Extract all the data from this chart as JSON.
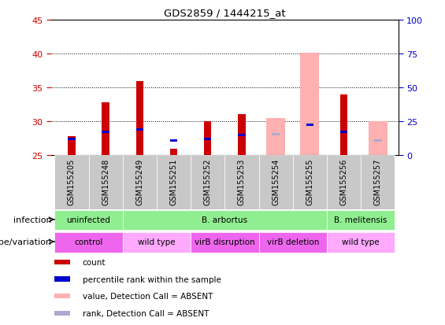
{
  "title": "GDS2859 / 1444215_at",
  "samples": [
    "GSM155205",
    "GSM155248",
    "GSM155249",
    "GSM155251",
    "GSM155252",
    "GSM155253",
    "GSM155254",
    "GSM155255",
    "GSM155256",
    "GSM155257"
  ],
  "baseline": 25,
  "ylim_left": [
    25,
    45
  ],
  "ylim_right": [
    0,
    100
  ],
  "yticks_left": [
    25,
    30,
    35,
    40,
    45
  ],
  "yticks_right": [
    0,
    25,
    50,
    75,
    100
  ],
  "red_bars": [
    27.8,
    32.8,
    36.0,
    26.0,
    30.0,
    31.1,
    null,
    null,
    34.0,
    null
  ],
  "pink_bars": [
    null,
    null,
    null,
    null,
    null,
    null,
    30.5,
    40.2,
    null,
    30.0
  ],
  "blue_squares": [
    27.2,
    28.3,
    28.7,
    27.0,
    27.2,
    27.8,
    null,
    29.3,
    28.3,
    null
  ],
  "light_blue_squares": [
    null,
    null,
    null,
    null,
    null,
    null,
    28.0,
    null,
    null,
    27.0
  ],
  "inf_groups": [
    {
      "label": "uninfected",
      "start": 0,
      "end": 2,
      "color": "#90EE90"
    },
    {
      "label": "B. arbortus",
      "start": 2,
      "end": 8,
      "color": "#90EE90"
    },
    {
      "label": "B. melitensis",
      "start": 8,
      "end": 10,
      "color": "#90EE90"
    }
  ],
  "gen_groups": [
    {
      "label": "control",
      "start": 0,
      "end": 2,
      "color": "#EE66EE"
    },
    {
      "label": "wild type",
      "start": 2,
      "end": 4,
      "color": "#FFAAFF"
    },
    {
      "label": "virB disruption",
      "start": 4,
      "end": 6,
      "color": "#EE66EE"
    },
    {
      "label": "virB deletion",
      "start": 6,
      "end": 8,
      "color": "#EE66EE"
    },
    {
      "label": "wild type",
      "start": 8,
      "end": 10,
      "color": "#FFAAFF"
    }
  ],
  "red_color": "#CC0000",
  "pink_color": "#FFB0B0",
  "blue_color": "#0000CC",
  "light_blue_color": "#AAAACC",
  "left_tick_color": "#CC0000",
  "right_tick_color": "#0000CC",
  "gray_bg": "#C8C8C8",
  "legend_items": [
    {
      "color": "#CC0000",
      "label": "count"
    },
    {
      "color": "#0000CC",
      "label": "percentile rank within the sample"
    },
    {
      "color": "#FFB0B0",
      "label": "value, Detection Call = ABSENT"
    },
    {
      "color": "#AAAACC",
      "label": "rank, Detection Call = ABSENT"
    }
  ]
}
